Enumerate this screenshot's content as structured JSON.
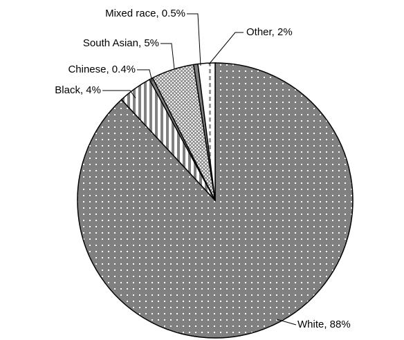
{
  "chart_data": {
    "type": "pie",
    "values": [
      88,
      4,
      0.4,
      5,
      0.5,
      2
    ],
    "value_labels": [
      "White, 88%",
      "Black, 4%",
      "Chinese, 0.4%",
      "South Asian, 5%",
      "Mixed race, 0.5%",
      "Other, 2%"
    ]
  }
}
